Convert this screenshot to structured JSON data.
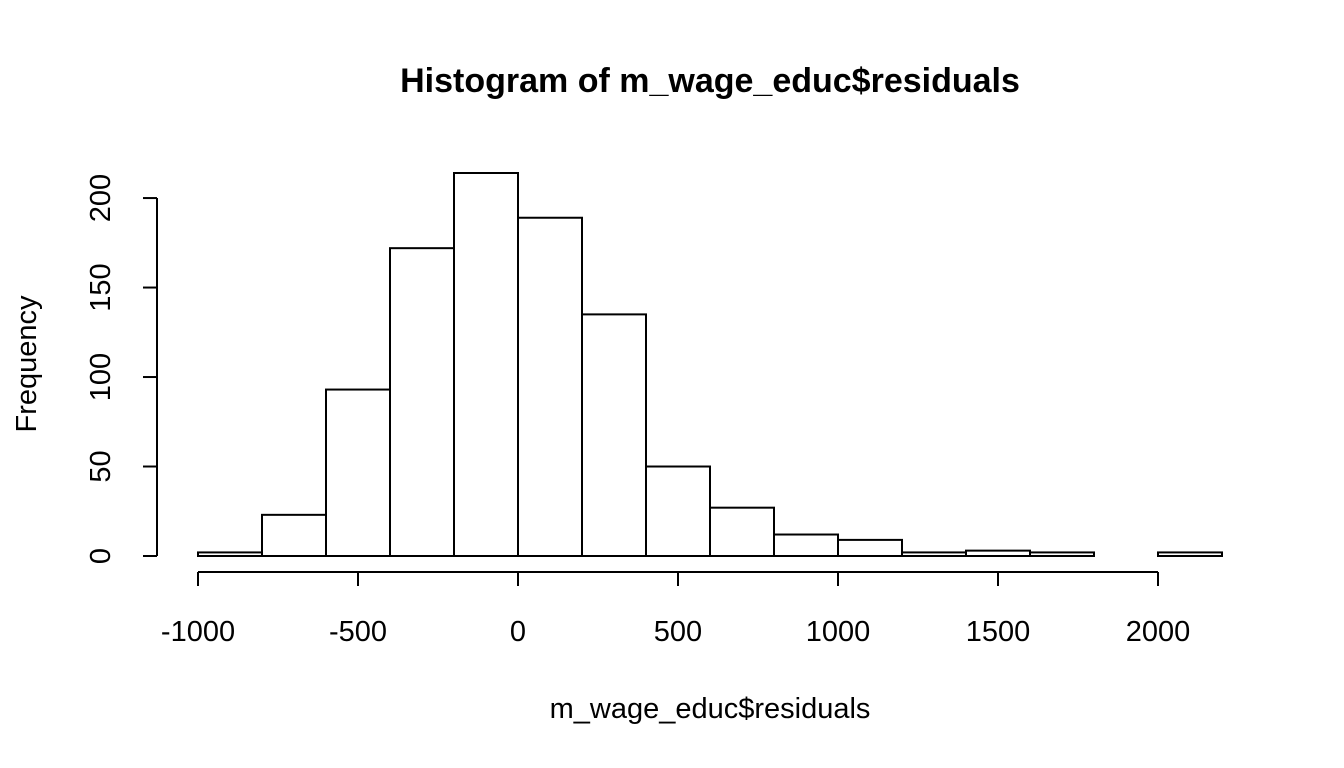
{
  "chart_data": {
    "type": "bar",
    "subtype": "histogram",
    "title": "Histogram of m_wage_educ$residuals",
    "xlabel": "m_wage_educ$residuals",
    "ylabel": "Frequency",
    "bin_edges": [
      -1000,
      -800,
      -600,
      -400,
      -200,
      0,
      200,
      400,
      600,
      800,
      1000,
      1200,
      1400,
      1600,
      1800,
      2000,
      2200
    ],
    "values": [
      2,
      23,
      93,
      172,
      214,
      189,
      135,
      50,
      27,
      12,
      9,
      2,
      3,
      2,
      0,
      2
    ],
    "xlim": [
      -1000,
      2200
    ],
    "ylim": [
      0,
      214
    ],
    "x_ticks": [
      -1000,
      -500,
      0,
      500,
      1000,
      1500,
      2000
    ],
    "x_tick_labels": [
      "-1000",
      "-500",
      "0",
      "500",
      "1000",
      "1500",
      "2000"
    ],
    "y_ticks": [
      0,
      50,
      100,
      150,
      200
    ],
    "y_tick_labels": [
      "0",
      "50",
      "100",
      "150",
      "200"
    ],
    "grid": false
  }
}
